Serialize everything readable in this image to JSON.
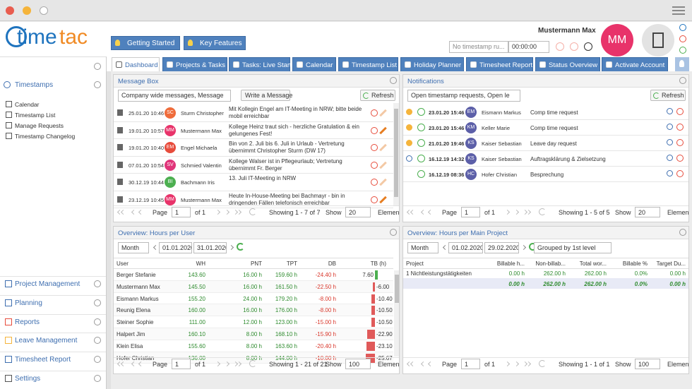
{
  "header": {
    "logo": {
      "part1": "time",
      "part2": "tac"
    },
    "user_name": "Mustermann Max",
    "user_initials": "MM",
    "quick_tabs": [
      "Getting Started",
      "Key Features"
    ],
    "timestamp_select": "No timestamp ru...",
    "timer": "00:00:00"
  },
  "nav_tabs": [
    "Dashboard",
    "Projects & Tasks",
    "Tasks: Live Start",
    "Calendar",
    "Timestamp List",
    "Holiday Planner",
    "Timesheet Report",
    "Status Overview",
    "Activate Account"
  ],
  "sidebar": {
    "section": "Timestamps",
    "items": [
      "Calendar",
      "Timestamp List",
      "Manage Requests",
      "Timestamp Changelog"
    ],
    "modules": [
      "Project Management",
      "Planning",
      "Reports",
      "Leave Management",
      "Timesheet Report",
      "Settings"
    ]
  },
  "message_box": {
    "title": "Message Box",
    "filter": "Company wide messages, Message",
    "write_button": "Write a Message",
    "refresh_button": "Refresh",
    "rows": [
      {
        "date": "25.01.20 10:46",
        "initials": "SC",
        "color": "#ef6c3b",
        "name": "Sturm Christopher",
        "text": "Mit Kollegin Engel am IT-Meeting in NRW; bitte beide mobil erreichbar"
      },
      {
        "date": "19.01.20 10:57",
        "initials": "MM",
        "color": "#e8336a",
        "name": "Mustermann Max",
        "text": "Kollege Heinz traut sich - herzliche Gratulation & ein gelungenes Fest!"
      },
      {
        "date": "19.01.20 10:40",
        "initials": "EM",
        "color": "#e74c3c",
        "name": "Engel Michaela",
        "text": "Bin von 2. Juli bis 6. Juli in Urlaub - Vertretung übernimmt Christopher Sturm (DW 17)"
      },
      {
        "date": "07.01.20 10:54",
        "initials": "SV",
        "color": "#e0357a",
        "name": "Schmied Valentin",
        "text": "Kollege Walser ist in Pflegeurlaub; Vertretung übernimmt Fr. Berger"
      },
      {
        "date": "30.12.19 10:44",
        "initials": "BI",
        "color": "#4caf50",
        "name": "Bachmann Iris",
        "text": "13. Juli IT-Meeting in NRW"
      },
      {
        "date": "23.12.19 10:45",
        "initials": "MM",
        "color": "#e8336a",
        "name": "Mustermann Max",
        "text": "Heute In-House-Meeting bei Bachmayr - bin in dringenden Fällen telefonisch erreichbar"
      }
    ],
    "pager": {
      "page_label": "Page",
      "page": "1",
      "of": "of 1",
      "showing": "Showing 1 - 7 of 7",
      "show_label": "Show",
      "per_page": "20",
      "elements": "Elements"
    }
  },
  "notifications": {
    "title": "Notifications",
    "filter": "Open timestamp requests, Open le",
    "refresh_button": "Refresh",
    "rows": [
      {
        "date": "23.01.20 15:46",
        "initials": "EM",
        "color": "#5c5fa8",
        "name": "Eismann Markus",
        "text": "Comp time request"
      },
      {
        "date": "23.01.20 15:46",
        "initials": "KM",
        "color": "#5c5fa8",
        "name": "Keller Marie",
        "text": "Comp time request"
      },
      {
        "date": "21.01.20 19:46",
        "initials": "KS",
        "color": "#5c5fa8",
        "name": "Kaiser Sebastian",
        "text": "Leave day request"
      },
      {
        "date": "16.12.19 14:32",
        "initials": "KS",
        "color": "#5c5fa8",
        "name": "Kaiser Sebastian",
        "text": "Auftragsklärung & Zielsetzung"
      },
      {
        "date": "16.12.19 08:36",
        "initials": "HC",
        "color": "#5c5fa8",
        "name": "Hofer Christian",
        "text": "Besprechung"
      }
    ],
    "pager": {
      "page_label": "Page",
      "page": "1",
      "of": "of 1",
      "showing": "Showing 1 - 5 of 5",
      "show_label": "Show",
      "per_page": "20",
      "elements": "Elements"
    }
  },
  "hours_per_user": {
    "title": "Overview: Hours per User",
    "period": "Month",
    "from": "01.01.2020",
    "to": "31.01.2020",
    "columns": [
      "User",
      "WH",
      "PNT",
      "TPT",
      "DB",
      "TB (h)"
    ],
    "rows": [
      [
        "Berger Stefanie",
        "143.60",
        "16.00 h",
        "159.60 h",
        "-24.40 h",
        "7.60"
      ],
      [
        "Mustermann Max",
        "145.50",
        "16.00 h",
        "161.50 h",
        "-22.50 h",
        "-6.00"
      ],
      [
        "Eismann Markus",
        "155.20",
        "24.00 h",
        "179.20 h",
        "-8.00 h",
        "-10.40"
      ],
      [
        "Reunig Elena",
        "160.00",
        "16.00 h",
        "176.00 h",
        "-8.00 h",
        "-10.50"
      ],
      [
        "Steiner Sophie",
        "111.00",
        "12.00 h",
        "123.00 h",
        "-15.00 h",
        "-10.50"
      ],
      [
        "Halpert Jim",
        "160.10",
        "8.00 h",
        "168.10 h",
        "-15.90 h",
        "-22.90"
      ],
      [
        "Klein Elisa",
        "155.60",
        "8.00 h",
        "163.60 h",
        "-20.40 h",
        "-23.10"
      ],
      [
        "Hofer Christian",
        "136.00",
        "8.00 h",
        "144.00 h",
        "-10.00 h",
        "-25.67"
      ]
    ],
    "pager": {
      "page_label": "Page",
      "page": "1",
      "of": "of 1",
      "showing": "Showing 1 - 21 of 21",
      "show_label": "Show",
      "per_page": "100",
      "elements": "Elements"
    }
  },
  "hours_per_project": {
    "title": "Overview: Hours per Main Project",
    "period": "Month",
    "from": "01.02.2020",
    "to": "29.02.2020",
    "grouping": "Grouped by 1st level",
    "columns": [
      "Project",
      "Billable h...",
      "Non-billab...",
      "Total wor...",
      "Billable %",
      "Target Du..."
    ],
    "rows": [
      [
        "1 Nichtleistungstätigkeiten",
        "0.00 h",
        "262.00 h",
        "262.00 h",
        "0.0%",
        "0.00 h"
      ]
    ],
    "totals": [
      "0.00 h",
      "262.00 h",
      "262.00 h",
      "0.0%",
      "0.00 h"
    ],
    "pager": {
      "page_label": "Page",
      "page": "1",
      "of": "of 1",
      "showing": "Showing 1 - 1 of 1",
      "show_label": "Show",
      "per_page": "100",
      "elements": "Elements"
    }
  }
}
